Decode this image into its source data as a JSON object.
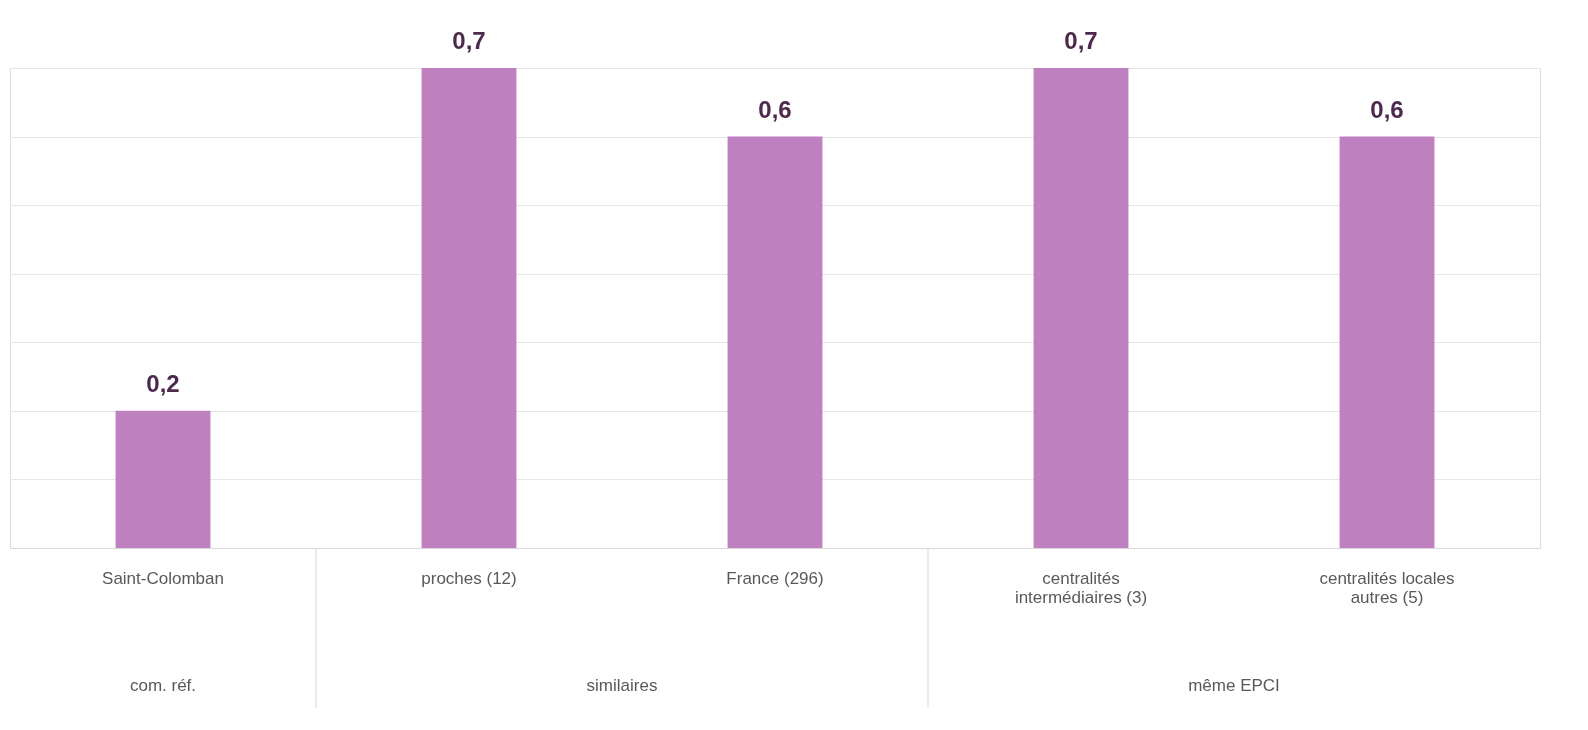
{
  "chart_data": {
    "type": "bar",
    "categories": [
      "Saint-Colomban",
      "proches (12)",
      "France (296)",
      "centralités intermédiaires (3)",
      "centralités locales autres (5)"
    ],
    "values": [
      0.2,
      0.7,
      0.6,
      0.7,
      0.6
    ],
    "value_labels": [
      "0,2",
      "0,7",
      "0,6",
      "0,7",
      "0,6"
    ],
    "color": "#bf80c0",
    "tick_labels": "x",
    "grid": "y",
    "annotations": [
      "com. réf.",
      "similaires",
      "même EPCI"
    ]
  }
}
